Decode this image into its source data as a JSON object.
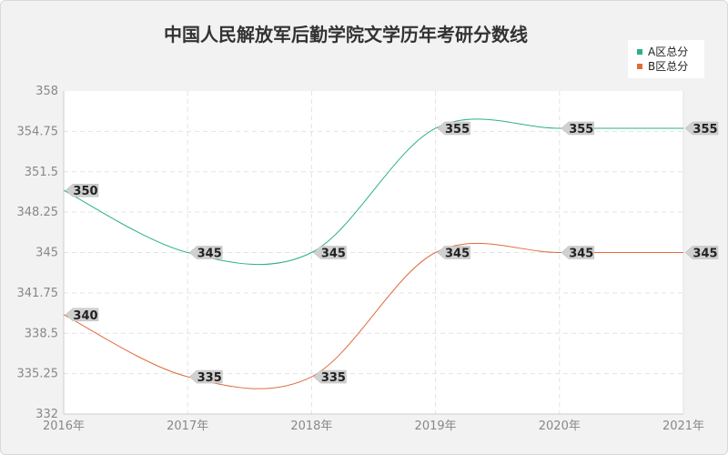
{
  "chart_data": {
    "type": "line",
    "title": "中国人民解放军后勤学院文学历年考研分数线",
    "categories": [
      "2016年",
      "2017年",
      "2018年",
      "2019年",
      "2020年",
      "2021年"
    ],
    "y_ticks": [
      "358",
      "354.75",
      "351.5",
      "348.25",
      "345",
      "341.75",
      "338.5",
      "335.25",
      "332"
    ],
    "ylim": [
      332,
      358
    ],
    "grid": true,
    "legend_position": "top-right",
    "series": [
      {
        "name": "A区总分",
        "color": "#2bb08a",
        "values": [
          350,
          345,
          345,
          355,
          355,
          355
        ],
        "labels": [
          "350",
          "345",
          "345",
          "355",
          "355",
          "355"
        ]
      },
      {
        "name": "B区总分",
        "color": "#e06c3c",
        "values": [
          340,
          335,
          335,
          345,
          345,
          345
        ],
        "labels": [
          "340",
          "335",
          "335",
          "345",
          "345",
          "345"
        ]
      }
    ]
  }
}
